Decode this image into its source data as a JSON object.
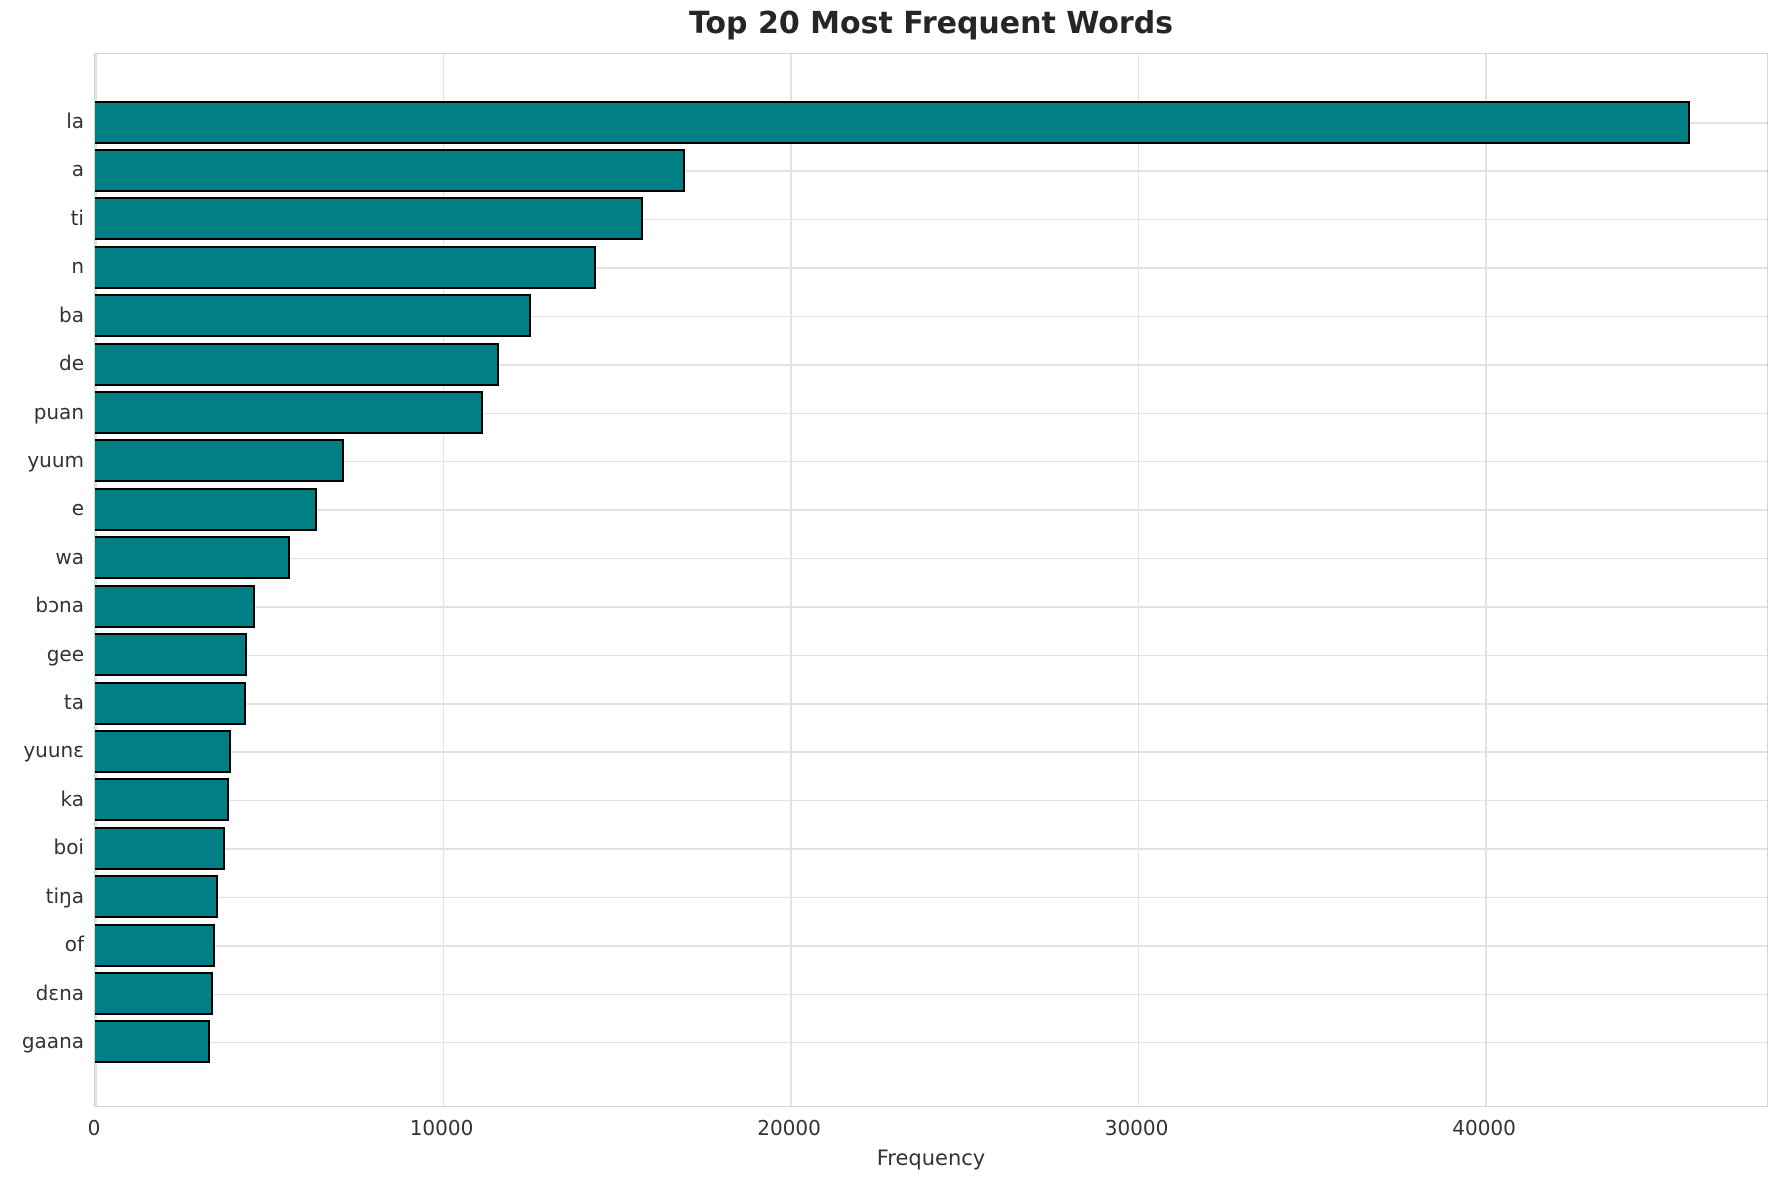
{
  "chart_data": {
    "type": "bar",
    "orientation": "horizontal",
    "title": "Top 20 Most Frequent Words",
    "xlabel": "Frequency",
    "ylabel": "",
    "categories": [
      "la",
      "a",
      "ti",
      "n",
      "ba",
      "de",
      "puan",
      "yuum",
      "e",
      "wa",
      "bɔna",
      "gee",
      "ta",
      "yuunɛ",
      "ka",
      "boi",
      "tiŋa",
      "of",
      "dɛna",
      "gaana"
    ],
    "values": [
      45900,
      16980,
      15770,
      14420,
      12550,
      11620,
      11170,
      7160,
      6390,
      5610,
      4600,
      4370,
      4340,
      3910,
      3860,
      3740,
      3540,
      3450,
      3400,
      3310
    ],
    "x_ticks": [
      0,
      10000,
      20000,
      30000,
      40000
    ],
    "x_tick_labels": [
      "0",
      "10000",
      "20000",
      "30000",
      "40000"
    ],
    "xlim": [
      0,
      48170
    ],
    "grid": true,
    "legend": null,
    "bar_color": "#007f84",
    "bar_edge_color": "#000000",
    "grid_color": "#e2e2e2",
    "title_color": "#262626",
    "tick_color": "#333333"
  }
}
